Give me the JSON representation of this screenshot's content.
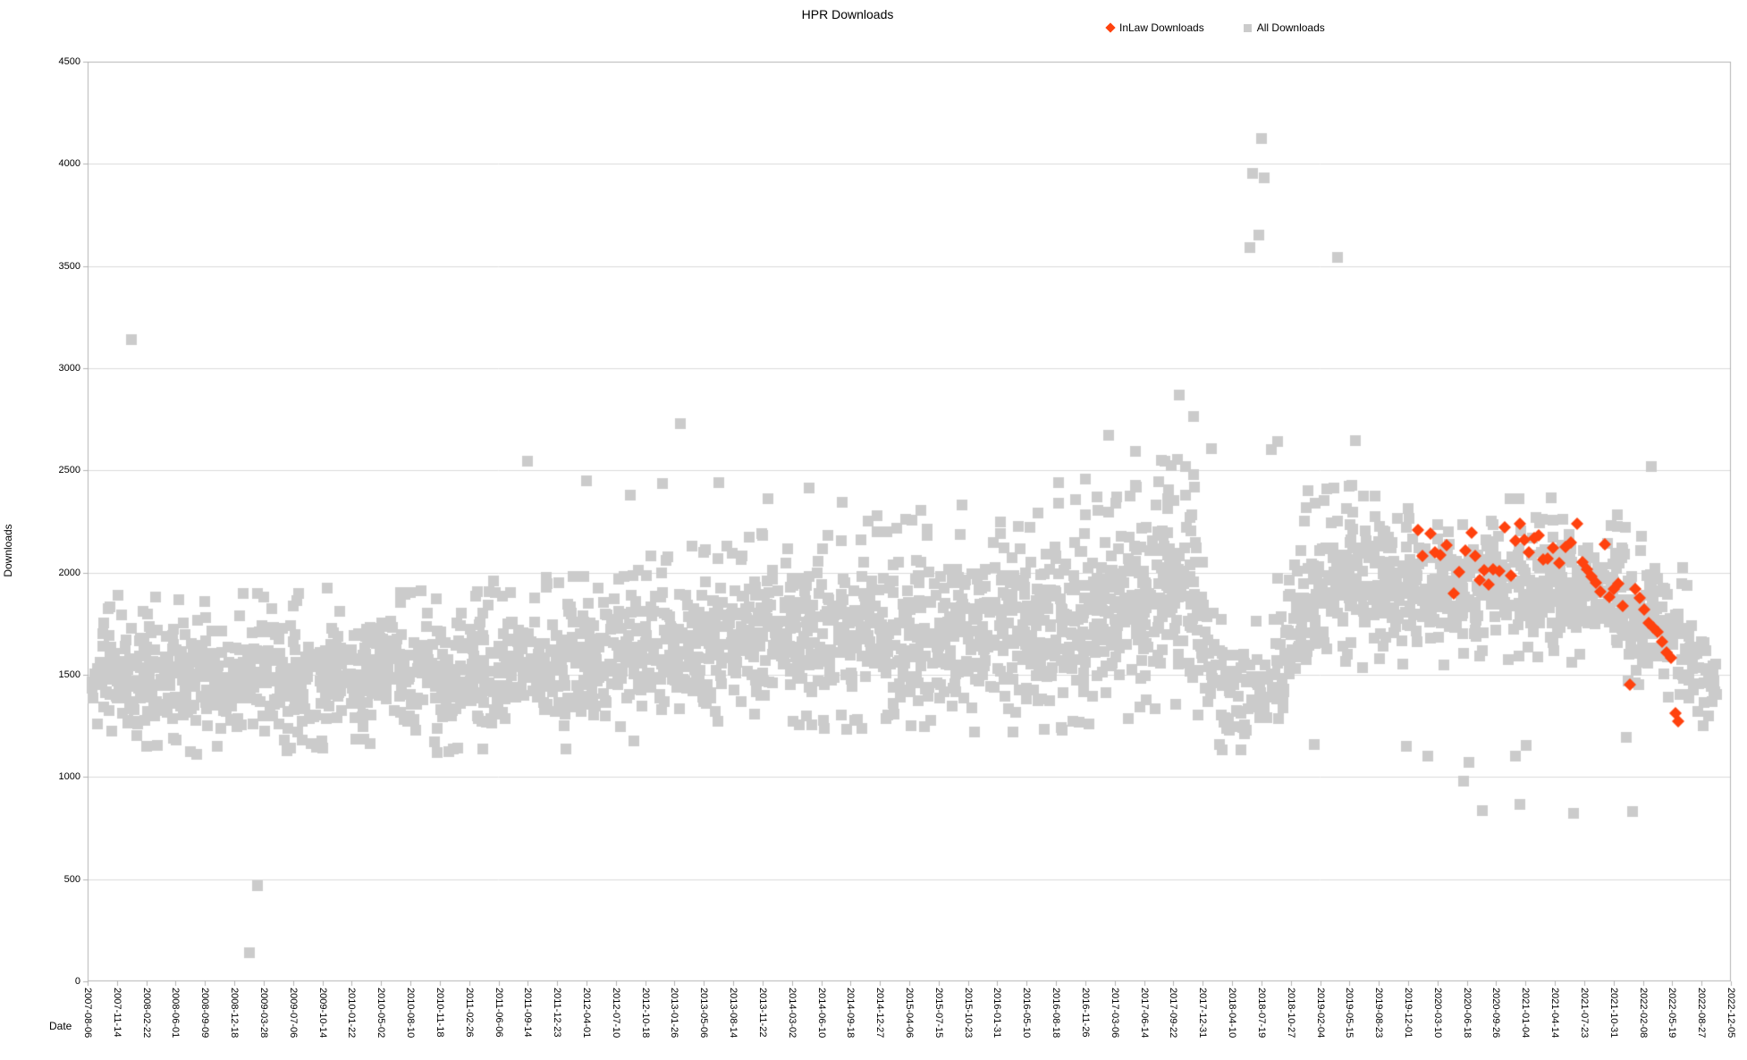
{
  "chart_data": {
    "type": "scatter",
    "title": "HPR Downloads",
    "xlabel": "Date",
    "ylabel": "Downloads",
    "grid": "horizontal",
    "legend_position": "top-right",
    "background": "#ffffff",
    "axis_color": "#b3b3b3",
    "gridline_color": "#dcdcdc",
    "ylim": [
      0,
      4500
    ],
    "y_ticks": [
      0,
      500,
      1000,
      1500,
      2000,
      2500,
      3000,
      3500,
      4000,
      4500
    ],
    "x_unit": "index into x_ticks; ticks are 100-day steps from 2007-08-06",
    "x_ticks": [
      "2007-08-06",
      "2007-11-14",
      "2008-02-22",
      "2008-06-01",
      "2008-09-09",
      "2008-12-18",
      "2009-03-28",
      "2009-07-06",
      "2009-10-14",
      "2010-01-22",
      "2010-05-02",
      "2010-08-10",
      "2010-11-18",
      "2011-02-26",
      "2011-06-06",
      "2011-09-14",
      "2011-12-23",
      "2012-04-01",
      "2012-07-10",
      "2012-10-18",
      "2013-01-26",
      "2013-05-06",
      "2013-08-14",
      "2013-11-22",
      "2014-03-02",
      "2014-06-10",
      "2014-09-18",
      "2014-12-27",
      "2015-04-06",
      "2015-07-15",
      "2015-10-23",
      "2016-01-31",
      "2016-05-10",
      "2016-08-18",
      "2016-11-26",
      "2017-03-06",
      "2017-06-14",
      "2017-09-22",
      "2017-12-31",
      "2018-04-10",
      "2018-07-19",
      "2018-10-27",
      "2019-02-04",
      "2019-05-15",
      "2019-08-23",
      "2019-12-01",
      "2020-03-10",
      "2020-06-18",
      "2020-09-26",
      "2021-01-04",
      "2021-04-14",
      "2021-07-23",
      "2021-10-31",
      "2022-02-08",
      "2022-05-19",
      "2022-08-27",
      "2022-12-05"
    ],
    "series": [
      {
        "name": "InLaw Downloads",
        "marker": "diamond",
        "color": "#ff420e",
        "points": [
          [
            45.35,
            2210
          ],
          [
            45.5,
            2082
          ],
          [
            45.75,
            2190
          ],
          [
            45.9,
            2098
          ],
          [
            46.1,
            2086
          ],
          [
            46.3,
            2132
          ],
          [
            46.55,
            1896
          ],
          [
            46.75,
            2002
          ],
          [
            46.95,
            2106
          ],
          [
            47.15,
            2196
          ],
          [
            47.3,
            2082
          ],
          [
            47.45,
            1962
          ],
          [
            47.6,
            2012
          ],
          [
            47.75,
            1940
          ],
          [
            47.9,
            2016
          ],
          [
            48.1,
            2008
          ],
          [
            48.3,
            2222
          ],
          [
            48.5,
            1986
          ],
          [
            48.65,
            2156
          ],
          [
            48.8,
            2240
          ],
          [
            48.95,
            2162
          ],
          [
            49.1,
            2098
          ],
          [
            49.3,
            2168
          ],
          [
            49.45,
            2182
          ],
          [
            49.6,
            2062
          ],
          [
            49.75,
            2068
          ],
          [
            49.95,
            2122
          ],
          [
            50.15,
            2048
          ],
          [
            50.35,
            2126
          ],
          [
            50.55,
            2146
          ],
          [
            50.75,
            2240
          ],
          [
            50.95,
            2052
          ],
          [
            51.1,
            2014
          ],
          [
            51.25,
            1982
          ],
          [
            51.4,
            1952
          ],
          [
            51.55,
            1908
          ],
          [
            51.7,
            2138
          ],
          [
            51.85,
            1882
          ],
          [
            52.0,
            1918
          ],
          [
            52.15,
            1944
          ],
          [
            52.3,
            1835
          ],
          [
            52.55,
            1450
          ],
          [
            52.75,
            1918
          ],
          [
            52.9,
            1874
          ],
          [
            53.05,
            1820
          ],
          [
            53.2,
            1755
          ],
          [
            53.35,
            1733
          ],
          [
            53.5,
            1712
          ],
          [
            53.65,
            1663
          ],
          [
            53.8,
            1610
          ],
          [
            53.95,
            1582
          ],
          [
            54.1,
            1310
          ],
          [
            54.2,
            1272
          ]
        ]
      },
      {
        "name": "All Downloads",
        "marker": "square",
        "color": "#cbcbcb",
        "band_note": "dense daily cloud approximated by envelope [t, low, high, density-multiplier]",
        "band_envelope": [
          [
            0.15,
            1300,
            1620,
            0.5
          ],
          [
            0.8,
            1230,
            1760,
            1.1
          ],
          [
            2,
            1200,
            1790,
            1.15
          ],
          [
            4,
            1190,
            1760,
            1.15
          ],
          [
            6,
            1190,
            1780,
            1.15
          ],
          [
            8,
            1220,
            1800,
            1.15
          ],
          [
            10,
            1240,
            1820,
            1.1
          ],
          [
            11.5,
            1230,
            1800,
            1.1
          ],
          [
            12.5,
            1150,
            1790,
            1.1
          ],
          [
            14,
            1220,
            1840,
            1.1
          ],
          [
            16,
            1210,
            1880,
            1.1
          ],
          [
            18,
            1250,
            1930,
            1.1
          ],
          [
            20,
            1280,
            2000,
            1.1
          ],
          [
            22,
            1280,
            2040,
            1.1
          ],
          [
            24,
            1300,
            2090,
            1.1
          ],
          [
            26,
            1310,
            2130,
            1.1
          ],
          [
            28,
            1320,
            2140,
            1.1
          ],
          [
            30,
            1300,
            2090,
            1.1
          ],
          [
            32,
            1290,
            2140,
            1.15
          ],
          [
            33.5,
            1300,
            2240,
            1.3
          ],
          [
            35,
            1330,
            2300,
            1.4
          ],
          [
            36.3,
            1400,
            2420,
            1.45
          ],
          [
            37.6,
            1450,
            2470,
            1.4
          ],
          [
            38.1,
            1280,
            1900,
            0.8
          ],
          [
            38.8,
            1150,
            1650,
            0.75
          ],
          [
            40.2,
            1150,
            1700,
            0.8
          ],
          [
            41.3,
            1400,
            2150,
            1.1
          ],
          [
            42.3,
            1600,
            2330,
            1.3
          ],
          [
            43.6,
            1620,
            2320,
            1.3
          ],
          [
            44.8,
            1560,
            2200,
            1.15
          ],
          [
            46,
            1600,
            2250,
            1.15
          ],
          [
            47.5,
            1620,
            2220,
            1.15
          ],
          [
            49,
            1650,
            2250,
            1.15
          ],
          [
            50.5,
            1640,
            2230,
            1.15
          ],
          [
            52,
            1580,
            2180,
            1.1
          ],
          [
            53.2,
            1500,
            2080,
            1
          ],
          [
            54.2,
            1380,
            1950,
            0.9
          ],
          [
            55,
            1280,
            1750,
            0.8
          ],
          [
            55.6,
            1240,
            1500,
            0.6
          ]
        ],
        "band_density_per_unit": 50,
        "band_seed": 7,
        "points_high": [
          [
            0.55,
            1755
          ],
          [
            0.7,
            1825
          ],
          [
            1.5,
            3140
          ],
          [
            15.0,
            2545
          ],
          [
            17.0,
            2450
          ],
          [
            18.5,
            2380
          ],
          [
            19.6,
            2435
          ],
          [
            20.2,
            2730
          ],
          [
            21.5,
            2440
          ],
          [
            23.2,
            2360
          ],
          [
            24.6,
            2415
          ],
          [
            25.7,
            2345
          ],
          [
            26.9,
            2280
          ],
          [
            28.4,
            2305
          ],
          [
            29.8,
            2330
          ],
          [
            31.1,
            2248
          ],
          [
            32.4,
            2292
          ],
          [
            33.1,
            2440
          ],
          [
            34.0,
            2458
          ],
          [
            34.8,
            2672
          ],
          [
            35.7,
            2592
          ],
          [
            36.6,
            2548
          ],
          [
            37.2,
            2870
          ],
          [
            37.7,
            2762
          ],
          [
            38.3,
            2605
          ],
          [
            39.6,
            3590
          ],
          [
            39.7,
            3952
          ],
          [
            39.9,
            3652
          ],
          [
            40.0,
            4122
          ],
          [
            40.1,
            3932
          ],
          [
            40.35,
            2602
          ],
          [
            40.55,
            2640
          ],
          [
            41.6,
            2402
          ],
          [
            42.6,
            3542
          ],
          [
            43.0,
            2422
          ],
          [
            43.2,
            2646
          ],
          [
            45.0,
            2312
          ],
          [
            53.3,
            2520
          ]
        ],
        "points_low": [
          [
            5.5,
            140
          ],
          [
            5.8,
            470
          ],
          [
            12.3,
            1122
          ],
          [
            12.6,
            1140
          ],
          [
            39.3,
            1132
          ],
          [
            41.8,
            1160
          ],
          [
            44.94,
            1150
          ],
          [
            45.68,
            1100
          ],
          [
            46.9,
            980
          ],
          [
            47.08,
            1072
          ],
          [
            47.54,
            835
          ],
          [
            48.66,
            1102
          ],
          [
            48.82,
            866
          ],
          [
            49.03,
            1155
          ],
          [
            50.65,
            822
          ],
          [
            52.44,
            1194
          ],
          [
            52.66,
            831
          ]
        ]
      }
    ]
  }
}
